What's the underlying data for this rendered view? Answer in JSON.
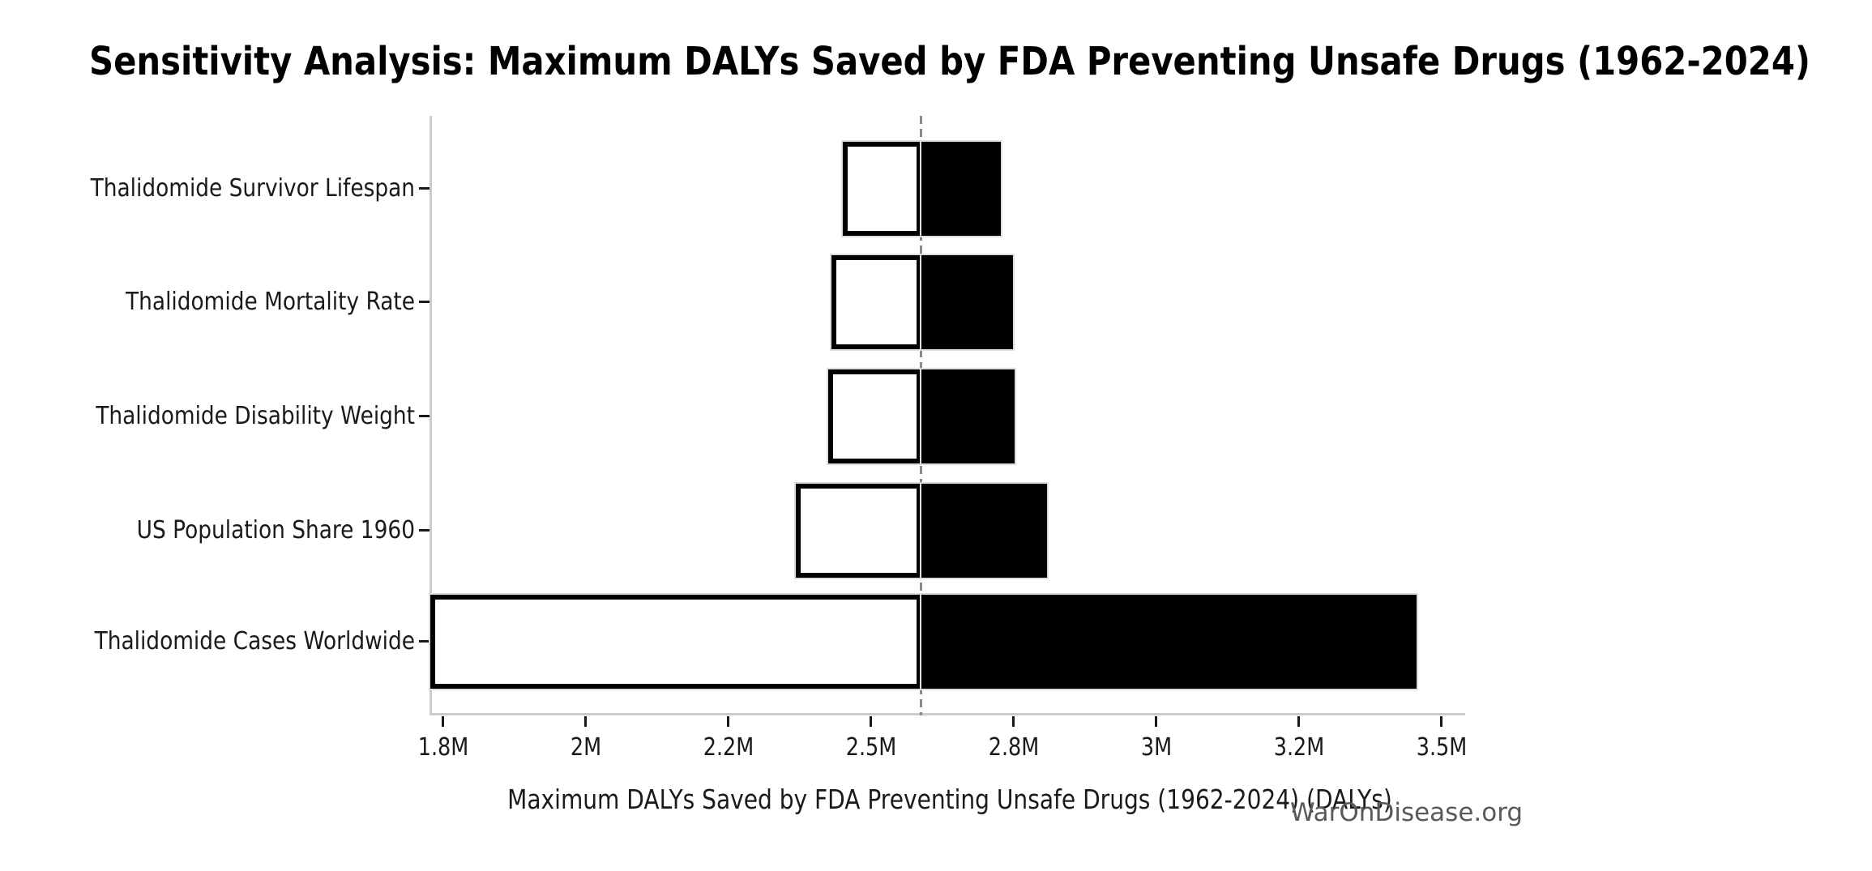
{
  "figure": {
    "watermark": "WarOnDisease.org"
  },
  "chart_data": {
    "type": "bar",
    "variant": "tornado_sensitivity",
    "orientation": "horizontal",
    "title": "Sensitivity Analysis: Maximum DALYs Saved by FDA Preventing Unsafe Drugs (1962-2024)",
    "xlabel": "Maximum DALYs Saved by FDA Preventing Unsafe Drugs (1962-2024) (DALYs)",
    "ylabel": "",
    "grid": false,
    "legend": false,
    "xlim": [
      1726000,
      3540000
    ],
    "baseline_value": 2588000,
    "xticks": [
      {
        "value": 1750000,
        "label": "1.8M"
      },
      {
        "value": 2000000,
        "label": "2M"
      },
      {
        "value": 2250000,
        "label": "2.2M"
      },
      {
        "value": 2500000,
        "label": "2.5M"
      },
      {
        "value": 2750000,
        "label": "2.8M"
      },
      {
        "value": 3000000,
        "label": "3M"
      },
      {
        "value": 3250000,
        "label": "3.2M"
      },
      {
        "value": 3500000,
        "label": "3.5M"
      }
    ],
    "categories": [
      "Thalidomide Survivor Lifespan",
      "Thalidomide Mortality Rate",
      "Thalidomide Disability Weight",
      "US Population Share 1960",
      "Thalidomide Cases Worldwide"
    ],
    "rows": [
      {
        "category": "Thalidomide Survivor Lifespan",
        "low": 2451000,
        "high": 2727000
      },
      {
        "category": "Thalidomide Mortality Rate",
        "low": 2431000,
        "high": 2749000
      },
      {
        "category": "Thalidomide Disability Weight",
        "low": 2425000,
        "high": 2752000
      },
      {
        "category": "US Population Share 1960",
        "low": 2368000,
        "high": 2809000
      },
      {
        "category": "Thalidomide Cases Worldwide",
        "low": 1727000,
        "high": 3456000
      }
    ],
    "styles": {
      "low_bar_fill": "#ffffff",
      "low_bar_edge": "#000000",
      "high_bar_fill": "#000000",
      "high_bar_edge": "#dddddd",
      "baseline_color": "#8a8a8a",
      "spine_color": "#cccccc",
      "text_color": "#1a1a1a",
      "watermark_color": "#595959"
    }
  }
}
